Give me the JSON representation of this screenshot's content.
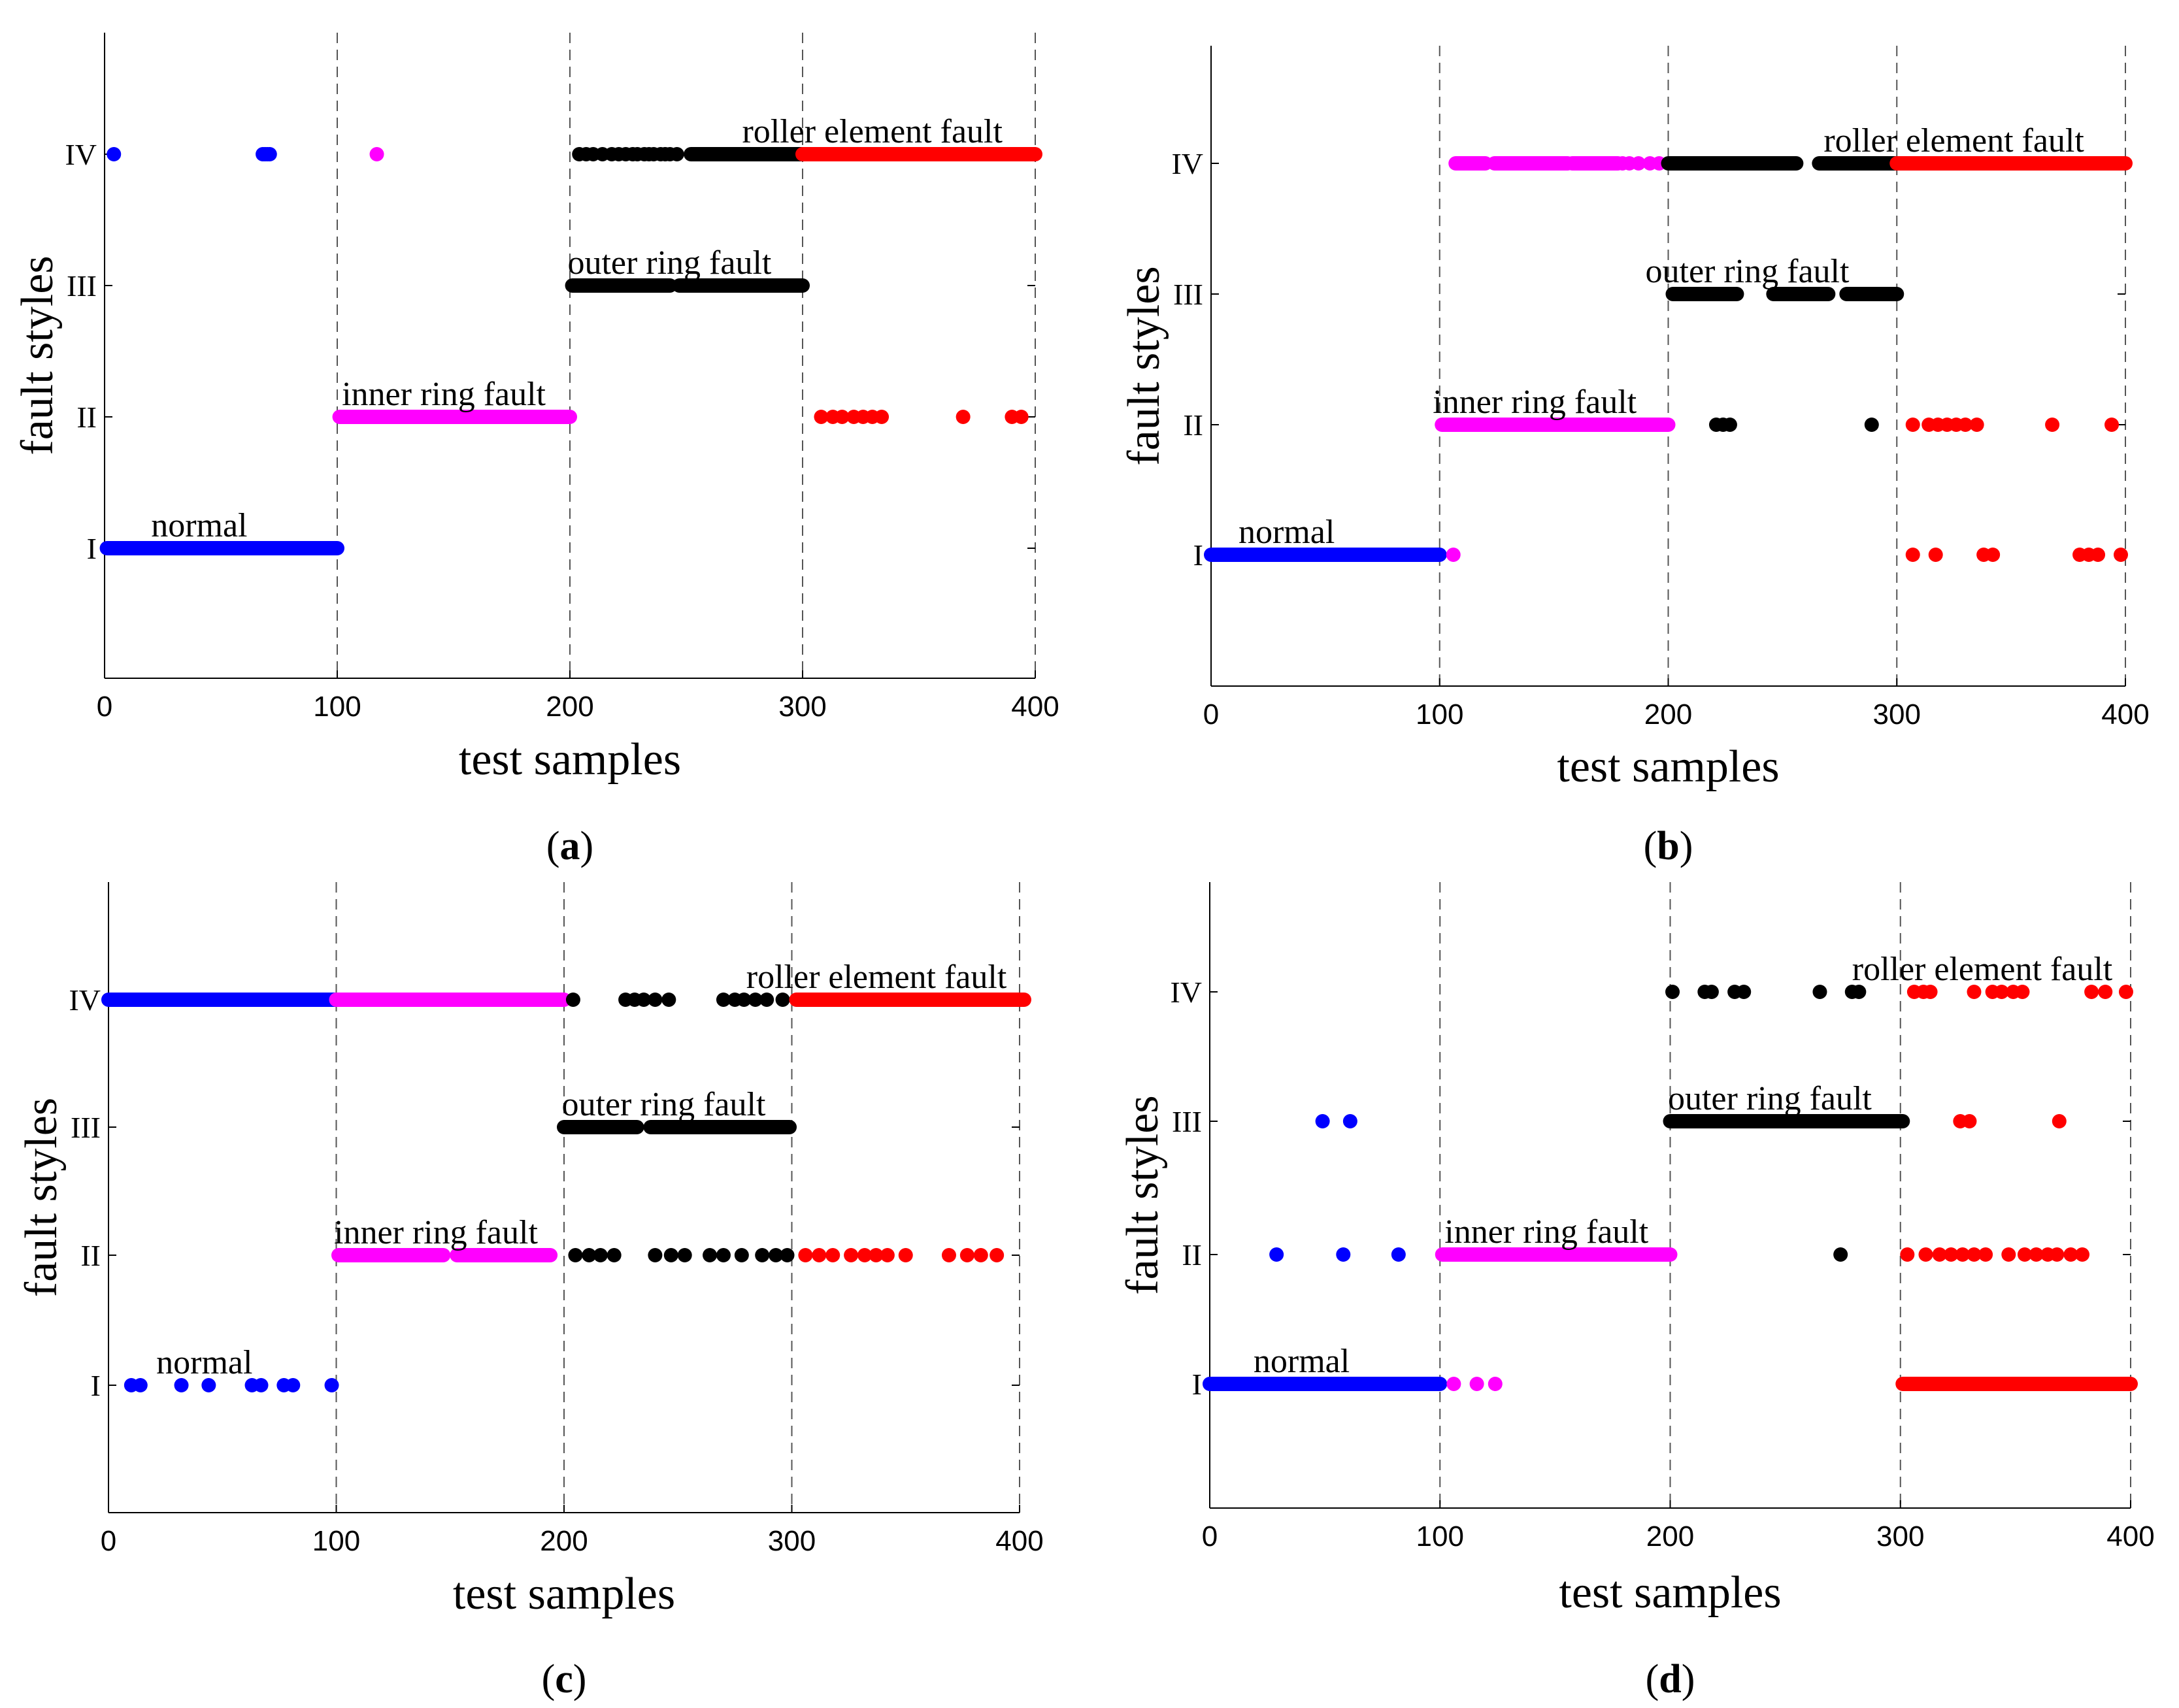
{
  "colors": {
    "normal": "#0000ff",
    "inner": "#ff00ff",
    "outer": "#000000",
    "roller": "#ff0000"
  },
  "chart_data": [
    {
      "id": "a",
      "type": "scatter",
      "caption_letter": "a",
      "xlabel": "test samples",
      "ylabel": "fault styles",
      "xlim": [
        0,
        400
      ],
      "xticks": [
        "0",
        "100",
        "200",
        "300",
        "400"
      ],
      "yticks": [
        "I",
        "II",
        "III",
        "IV"
      ],
      "ylevels": [
        1,
        2,
        3,
        4
      ],
      "ylim": [
        0,
        5
      ],
      "vlines": [
        100,
        200,
        300,
        400
      ],
      "annotations": [
        {
          "text": "normal",
          "x": 20,
          "y": 1
        },
        {
          "text": "inner ring fault",
          "x": 102,
          "y": 2
        },
        {
          "text": "outer ring fault",
          "x": 199,
          "y": 3
        },
        {
          "text": "roller element fault",
          "x": 274,
          "y": 4
        }
      ],
      "series": [
        {
          "name": "normal",
          "color": "normal",
          "segments": [
            [
              1,
              1,
              100
            ]
          ],
          "points": [
            [
              4,
              4
            ],
            [
              68,
              4
            ],
            [
              69,
              4
            ],
            [
              70,
              4
            ],
            [
              71,
              4
            ]
          ]
        },
        {
          "name": "inner ring fault",
          "color": "inner",
          "segments": [
            [
              2,
              101,
              200
            ]
          ],
          "points": [
            [
              117,
              4
            ]
          ]
        },
        {
          "name": "outer ring fault",
          "color": "outer",
          "segments": [
            [
              3,
              201,
              243
            ],
            [
              3,
              247,
              300
            ],
            [
              4,
              252,
              300
            ]
          ],
          "points": [
            [
              204,
              4
            ],
            [
              207,
              4
            ],
            [
              210,
              4
            ],
            [
              214,
              4
            ],
            [
              218,
              4
            ],
            [
              221,
              4
            ],
            [
              224,
              4
            ],
            [
              227,
              4
            ],
            [
              229,
              4
            ],
            [
              232,
              4
            ],
            [
              234,
              4
            ],
            [
              236,
              4
            ],
            [
              239,
              4
            ],
            [
              241,
              4
            ],
            [
              243,
              4
            ],
            [
              246,
              4
            ],
            [
              253,
              4
            ],
            [
              259,
              4
            ],
            [
              264,
              4
            ],
            [
              271,
              4
            ],
            [
              276,
              4
            ],
            [
              281,
              4
            ],
            [
              286,
              4
            ],
            [
              291,
              4
            ],
            [
              296,
              4
            ]
          ]
        },
        {
          "name": "roller element fault",
          "color": "roller",
          "segments": [
            [
              4,
              300,
              400
            ]
          ],
          "points": [
            [
              308,
              2
            ],
            [
              313,
              2
            ],
            [
              317,
              2
            ],
            [
              322,
              2
            ],
            [
              326,
              2
            ],
            [
              330,
              2
            ],
            [
              334,
              2
            ],
            [
              369,
              2
            ],
            [
              390,
              2
            ],
            [
              394,
              2
            ]
          ]
        }
      ]
    },
    {
      "id": "b",
      "type": "scatter",
      "caption_letter": "b",
      "xlabel": "test samples",
      "ylabel": "fault styles",
      "xlim": [
        0,
        400
      ],
      "xticks": [
        "0",
        "100",
        "200",
        "300",
        "400"
      ],
      "yticks": [
        "I",
        "II",
        "III",
        "IV"
      ],
      "ylevels": [
        1,
        2,
        3,
        4
      ],
      "ylim": [
        0,
        5
      ],
      "vlines": [
        100,
        200,
        300,
        400
      ],
      "annotations": [
        {
          "text": "normal",
          "x": 12,
          "y": 1
        },
        {
          "text": "inner ring fault",
          "x": 97,
          "y": 2
        },
        {
          "text": "outer ring fault",
          "x": 190,
          "y": 3
        },
        {
          "text": "roller element fault",
          "x": 268,
          "y": 4
        }
      ],
      "series": [
        {
          "name": "normal",
          "color": "normal",
          "segments": [
            [
              1,
              0,
              100
            ]
          ],
          "points": []
        },
        {
          "name": "inner ring fault",
          "color": "inner",
          "segments": [
            [
              2,
              101,
              200
            ],
            [
              4,
              107,
              120
            ],
            [
              4,
              124,
              156
            ],
            [
              4,
              158,
              178
            ]
          ],
          "points": [
            [
              106,
              1
            ],
            [
              160,
              4
            ],
            [
              163,
              4
            ],
            [
              180,
              4
            ],
            [
              183,
              4
            ],
            [
              187,
              4
            ],
            [
              192,
              4
            ],
            [
              196,
              4
            ]
          ]
        },
        {
          "name": "outer ring fault",
          "color": "outer",
          "segments": [
            [
              3,
              202,
              230
            ],
            [
              3,
              246,
              270
            ],
            [
              3,
              278,
              300
            ],
            [
              4,
              200,
              256
            ],
            [
              4,
              266,
              300
            ]
          ],
          "points": [
            [
              221,
              2
            ],
            [
              224,
              2
            ],
            [
              227,
              2
            ],
            [
              289,
              2
            ]
          ]
        },
        {
          "name": "roller element fault",
          "color": "roller",
          "segments": [
            [
              4,
              300,
              400
            ]
          ],
          "points": [
            [
              307,
              1
            ],
            [
              317,
              1
            ],
            [
              338,
              1
            ],
            [
              342,
              1
            ],
            [
              380,
              1
            ],
            [
              384,
              1
            ],
            [
              388,
              1
            ],
            [
              398,
              1
            ],
            [
              307,
              2
            ],
            [
              314,
              2
            ],
            [
              318,
              2
            ],
            [
              322,
              2
            ],
            [
              326,
              2
            ],
            [
              330,
              2
            ],
            [
              335,
              2
            ],
            [
              368,
              2
            ],
            [
              394,
              2
            ]
          ]
        }
      ]
    },
    {
      "id": "c",
      "type": "scatter",
      "caption_letter": "c",
      "xlabel": "test samples",
      "ylabel": "fault styles",
      "xlim": [
        0,
        400
      ],
      "xticks": [
        "0",
        "100",
        "200",
        "300",
        "400"
      ],
      "yticks": [
        "I",
        "II",
        "III",
        "IV"
      ],
      "ylevels": [
        1,
        2,
        3,
        4
      ],
      "ylim": [
        0,
        5
      ],
      "vlines": [
        100,
        200,
        300,
        400
      ],
      "annotations": [
        {
          "text": "normal",
          "x": 21,
          "y": 1
        },
        {
          "text": "inner ring fault",
          "x": 99,
          "y": 2
        },
        {
          "text": "outer ring fault",
          "x": 199,
          "y": 3
        },
        {
          "text": "roller element fault",
          "x": 280,
          "y": 4
        }
      ],
      "series": [
        {
          "name": "normal",
          "color": "normal",
          "segments": [
            [
              4,
              0,
              100
            ]
          ],
          "points": [
            [
              10,
              1
            ],
            [
              14,
              1
            ],
            [
              32,
              1
            ],
            [
              44,
              1
            ],
            [
              63,
              1
            ],
            [
              67,
              1
            ],
            [
              77,
              1
            ],
            [
              81,
              1
            ],
            [
              98,
              1
            ]
          ]
        },
        {
          "name": "inner ring fault",
          "color": "inner",
          "segments": [
            [
              4,
              100,
              200
            ],
            [
              2,
              101,
              147
            ],
            [
              2,
              153,
              194
            ]
          ],
          "points": []
        },
        {
          "name": "outer ring fault",
          "color": "outer",
          "segments": [
            [
              3,
              200,
              232
            ],
            [
              3,
              238,
              299
            ]
          ],
          "points": [
            [
              204,
              4
            ],
            [
              227,
              4
            ],
            [
              231,
              4
            ],
            [
              235,
              4
            ],
            [
              240,
              4
            ],
            [
              246,
              4
            ],
            [
              270,
              4
            ],
            [
              275,
              4
            ],
            [
              279,
              4
            ],
            [
              284,
              4
            ],
            [
              289,
              4
            ],
            [
              296,
              4
            ],
            [
              205,
              2
            ],
            [
              211,
              2
            ],
            [
              216,
              2
            ],
            [
              222,
              2
            ],
            [
              240,
              2
            ],
            [
              247,
              2
            ],
            [
              253,
              2
            ],
            [
              264,
              2
            ],
            [
              270,
              2
            ],
            [
              278,
              2
            ],
            [
              287,
              2
            ],
            [
              293,
              2
            ],
            [
              298,
              2
            ]
          ]
        },
        {
          "name": "roller element fault",
          "color": "roller",
          "segments": [
            [
              4,
              302,
              402
            ]
          ],
          "points": [
            [
              306,
              2
            ],
            [
              312,
              2
            ],
            [
              318,
              2
            ],
            [
              326,
              2
            ],
            [
              332,
              2
            ],
            [
              337,
              2
            ],
            [
              342,
              2
            ],
            [
              350,
              2
            ],
            [
              369,
              2
            ],
            [
              377,
              2
            ],
            [
              383,
              2
            ],
            [
              390,
              2
            ]
          ]
        }
      ]
    },
    {
      "id": "d",
      "type": "scatter",
      "caption_letter": "d",
      "xlabel": "test samples",
      "ylabel": "fault styles",
      "xlim": [
        0,
        400
      ],
      "xticks": [
        "0",
        "100",
        "200",
        "300",
        "400"
      ],
      "yticks": [
        "I",
        "II",
        "III",
        "IV"
      ],
      "ylevels": [
        1,
        2,
        3,
        4
      ],
      "ylim": [
        0,
        5
      ],
      "vlines": [
        100,
        200,
        300,
        400
      ],
      "annotations": [
        {
          "text": "normal",
          "x": 19,
          "y": 1
        },
        {
          "text": "inner ring fault",
          "x": 102,
          "y": 2
        },
        {
          "text": "outer ring fault",
          "x": 199,
          "y": 3
        },
        {
          "text": "roller element fault",
          "x": 279,
          "y": 4
        }
      ],
      "series": [
        {
          "name": "normal",
          "color": "normal",
          "segments": [
            [
              1,
              0,
              100
            ]
          ],
          "points": [
            [
              29,
              2
            ],
            [
              58,
              2
            ],
            [
              82,
              2
            ],
            [
              49,
              3
            ],
            [
              61,
              3
            ]
          ]
        },
        {
          "name": "inner ring fault",
          "color": "inner",
          "segments": [
            [
              2,
              101,
              200
            ]
          ],
          "points": [
            [
              106,
              1
            ],
            [
              116,
              1
            ],
            [
              124,
              1
            ]
          ]
        },
        {
          "name": "outer ring fault",
          "color": "outer",
          "segments": [
            [
              3,
              200,
              301
            ]
          ],
          "points": [
            [
              201,
              4
            ],
            [
              215,
              4
            ],
            [
              218,
              4
            ],
            [
              228,
              4
            ],
            [
              232,
              4
            ],
            [
              265,
              4
            ],
            [
              279,
              4
            ],
            [
              282,
              4
            ],
            [
              274,
              2
            ]
          ]
        },
        {
          "name": "roller element fault",
          "color": "roller",
          "segments": [
            [
              1,
              301,
              400
            ]
          ],
          "points": [
            [
              306,
              4
            ],
            [
              310,
              4
            ],
            [
              313,
              4
            ],
            [
              332,
              4
            ],
            [
              340,
              4
            ],
            [
              344,
              4
            ],
            [
              349,
              4
            ],
            [
              353,
              4
            ],
            [
              383,
              4
            ],
            [
              389,
              4
            ],
            [
              398,
              4
            ],
            [
              326,
              3
            ],
            [
              330,
              3
            ],
            [
              369,
              3
            ],
            [
              303,
              2
            ],
            [
              311,
              2
            ],
            [
              317,
              2
            ],
            [
              322,
              2
            ],
            [
              327,
              2
            ],
            [
              332,
              2
            ],
            [
              337,
              2
            ],
            [
              347,
              2
            ],
            [
              354,
              2
            ],
            [
              359,
              2
            ],
            [
              364,
              2
            ],
            [
              368,
              2
            ],
            [
              374,
              2
            ],
            [
              379,
              2
            ]
          ]
        }
      ]
    }
  ]
}
